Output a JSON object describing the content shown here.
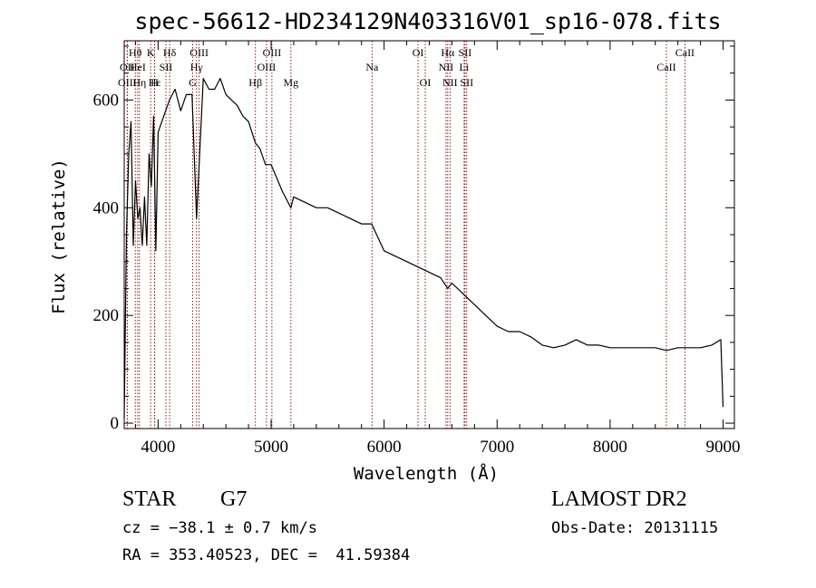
{
  "chart_data": {
    "type": "line",
    "title": "spec-56612-HD234129N403316V01_sp16-078.fits",
    "xlabel": "Wavelength (Å)",
    "ylabel": "Flux (relative)",
    "xlim": [
      3700,
      9100
    ],
    "ylim": [
      -10,
      710
    ],
    "x_ticks": [
      4000,
      5000,
      6000,
      7000,
      8000,
      9000
    ],
    "y_ticks": [
      0,
      200,
      400,
      600
    ],
    "line_color": "#000000",
    "marker_color": "#8b0000",
    "series": [
      {
        "x": [
          3700,
          3720,
          3740,
          3760,
          3780,
          3800,
          3820,
          3840,
          3860,
          3880,
          3900,
          3920,
          3940,
          3960,
          3980,
          4000,
          4050,
          4100,
          4150,
          4200,
          4250,
          4300,
          4340,
          4400,
          4450,
          4500,
          4550,
          4600,
          4650,
          4700,
          4750,
          4800,
          4861,
          4900,
          4950,
          5000,
          5100,
          5175,
          5200,
          5300,
          5400,
          5500,
          5600,
          5700,
          5800,
          5890,
          6000,
          6100,
          6200,
          6300,
          6400,
          6500,
          6563,
          6600,
          6700,
          6800,
          6900,
          7000,
          7100,
          7200,
          7300,
          7400,
          7500,
          7600,
          7700,
          7800,
          7900,
          8000,
          8100,
          8200,
          8300,
          8400,
          8500,
          8600,
          8700,
          8800,
          8900,
          8980,
          9000
        ],
        "y": [
          10,
          350,
          500,
          560,
          330,
          450,
          380,
          400,
          330,
          420,
          330,
          500,
          440,
          570,
          320,
          540,
          570,
          600,
          620,
          580,
          610,
          610,
          380,
          640,
          620,
          620,
          640,
          610,
          600,
          590,
          570,
          560,
          520,
          510,
          480,
          480,
          430,
          400,
          420,
          410,
          400,
          400,
          390,
          380,
          370,
          370,
          320,
          310,
          300,
          290,
          280,
          270,
          250,
          260,
          240,
          220,
          200,
          180,
          170,
          170,
          160,
          145,
          140,
          145,
          155,
          145,
          145,
          140,
          140,
          140,
          140,
          140,
          135,
          140,
          140,
          140,
          145,
          155,
          30
        ]
      }
    ],
    "line_markers": [
      {
        "label": "Hθ",
        "x": 3798,
        "row": 1
      },
      {
        "label": "OII",
        "x": 3727,
        "row": 2
      },
      {
        "label": "OIII",
        "x": 3727,
        "row": 3
      },
      {
        "label": "HeI",
        "x": 3819,
        "row": 2
      },
      {
        "label": "Hη",
        "x": 3835,
        "row": 3
      },
      {
        "label": "K",
        "x": 3934,
        "row": 1
      },
      {
        "label": "SII",
        "x": 4069,
        "row": 2
      },
      {
        "label": "H",
        "x": 3969,
        "row": 3
      },
      {
        "label": "Hε",
        "x": 3970,
        "row": 3
      },
      {
        "label": "Hδ",
        "x": 4102,
        "row": 1
      },
      {
        "label": "OIII",
        "x": 4363,
        "row": 1
      },
      {
        "label": "Hγ",
        "x": 4340,
        "row": 2
      },
      {
        "label": "G",
        "x": 4305,
        "row": 3
      },
      {
        "label": "Hβ",
        "x": 4861,
        "row": 4
      },
      {
        "label": "OIII",
        "x": 5007,
        "row": 1
      },
      {
        "label": "OIII",
        "x": 4959,
        "row": 2
      },
      {
        "label": "Mg",
        "x": 5175,
        "row": 4
      },
      {
        "label": "Na",
        "x": 5893,
        "row": 2
      },
      {
        "label": "OI",
        "x": 6300,
        "row": 1
      },
      {
        "label": "OI",
        "x": 6364,
        "row": 3
      },
      {
        "label": "Hα",
        "x": 6563,
        "row": 1
      },
      {
        "label": "SII",
        "x": 6716,
        "row": 1
      },
      {
        "label": "NII",
        "x": 6548,
        "row": 2
      },
      {
        "label": "Li",
        "x": 6708,
        "row": 2
      },
      {
        "label": "NII",
        "x": 6583,
        "row": 3
      },
      {
        "label": "SII",
        "x": 6731,
        "row": 3
      },
      {
        "label": "CaII",
        "x": 8662,
        "row": 1
      },
      {
        "label": "CaII",
        "x": 8498,
        "row": 2
      }
    ],
    "grid": false,
    "legend": "none"
  },
  "info": {
    "class": "STAR",
    "subclass": "G7",
    "survey": "LAMOST DR2",
    "cz": "cz = −38.1 ± 0.7 km/s",
    "obs_date": "Obs-Date: 20131115",
    "coords": "RA = 353.40523, DEC =  41.59384"
  }
}
